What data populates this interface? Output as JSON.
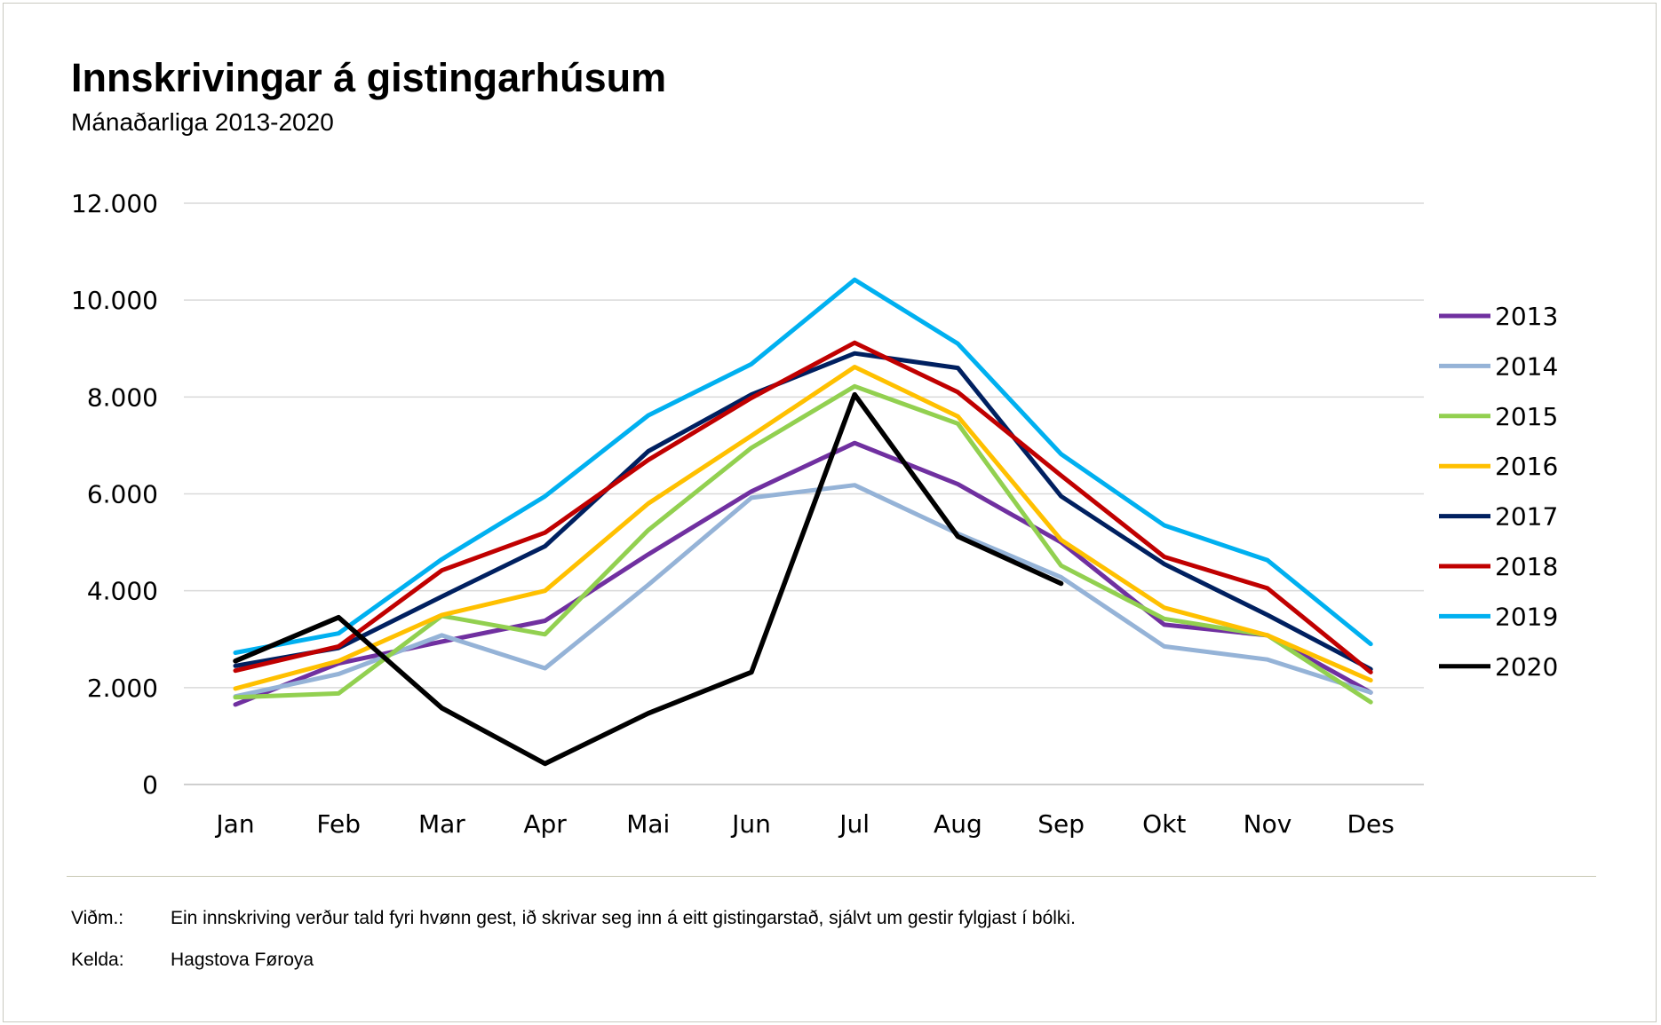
{
  "header": {
    "title": "Innskrivingar á gistingarhúsum",
    "subtitle": "Mánaðarliga 2013-2020"
  },
  "footer": {
    "note_label": "Viðm.:",
    "note_text": "Ein innskriving verður tald fyri hvønn gest, ið skrivar seg inn á eitt gistingarstað, sjálvt um gestir fylgjast í bólki.",
    "source_label": "Kelda:",
    "source_text": "Hagstova Føroya"
  },
  "chart_data": {
    "type": "line",
    "title": "Innskrivingar á gistingarhúsum",
    "subtitle": "Mánaðarliga 2013-2020",
    "xlabel": "",
    "ylabel": "",
    "categories": [
      "Jan",
      "Feb",
      "Mar",
      "Apr",
      "Mai",
      "Jun",
      "Jul",
      "Aug",
      "Sep",
      "Okt",
      "Nov",
      "Des"
    ],
    "ylim": [
      0,
      12000
    ],
    "yticks": [
      0,
      2000,
      4000,
      6000,
      8000,
      10000,
      12000
    ],
    "ytick_labels": [
      "0",
      "2.000",
      "4.000",
      "6.000",
      "8.000",
      "10.000",
      "12.000"
    ],
    "grid": true,
    "legend_position": "right",
    "series": [
      {
        "name": "2013",
        "color": "#7030a0",
        "values": [
          1650,
          2500,
          2950,
          3380,
          4750,
          6050,
          7050,
          6200,
          5000,
          3300,
          3080,
          1900
        ]
      },
      {
        "name": "2014",
        "color": "#95b3d7",
        "values": [
          1820,
          2280,
          3080,
          2400,
          4120,
          5920,
          6180,
          5180,
          4280,
          2850,
          2580,
          1900
        ]
      },
      {
        "name": "2015",
        "color": "#92d050",
        "values": [
          1800,
          1880,
          3480,
          3100,
          5250,
          6950,
          8220,
          7450,
          4520,
          3420,
          3080,
          1700
        ]
      },
      {
        "name": "2016",
        "color": "#ffc000",
        "values": [
          1980,
          2550,
          3500,
          4000,
          5800,
          7200,
          8620,
          7600,
          5050,
          3650,
          3080,
          2150
        ]
      },
      {
        "name": "2017",
        "color": "#002060",
        "values": [
          2450,
          2820,
          3880,
          4920,
          6880,
          8050,
          8900,
          8600,
          5950,
          4550,
          3500,
          2380
        ]
      },
      {
        "name": "2018",
        "color": "#c00000",
        "values": [
          2350,
          2850,
          4420,
          5200,
          6700,
          7980,
          9120,
          8100,
          6380,
          4700,
          4050,
          2320
        ]
      },
      {
        "name": "2019",
        "color": "#00b0f0",
        "values": [
          2720,
          3120,
          4650,
          5950,
          7620,
          8680,
          10420,
          9100,
          6820,
          5350,
          4630,
          2900
        ]
      },
      {
        "name": "2020",
        "color": "#000000",
        "values": [
          2550,
          3450,
          1580,
          430,
          1470,
          2320,
          8050,
          5120,
          4150,
          null,
          null,
          null
        ]
      }
    ]
  }
}
